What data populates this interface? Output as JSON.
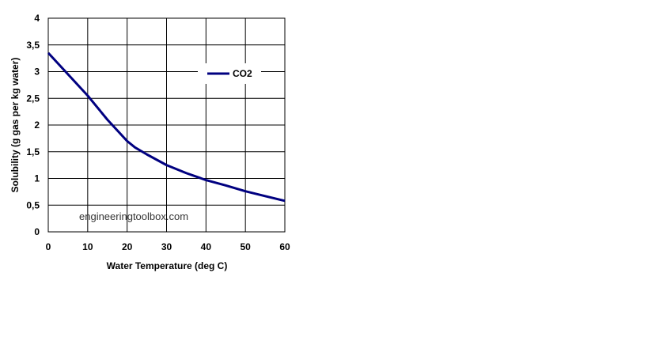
{
  "watermark": "engineeringtoolbox.com",
  "chart_data": {
    "type": "line",
    "title": "",
    "xlabel": "Water Temperature (deg C)",
    "ylabel": "Solubility (g gas per kg water)",
    "xlim": [
      0,
      60
    ],
    "ylim": [
      0,
      4
    ],
    "x_ticks": [
      "0",
      "10",
      "20",
      "30",
      "40",
      "50",
      "60"
    ],
    "y_ticks": [
      "0",
      "0,5",
      "1",
      "1,5",
      "2",
      "2,5",
      "3",
      "3,5",
      "4"
    ],
    "grid": true,
    "legend": "top-right",
    "series": [
      {
        "name": "CO2",
        "color": "#000080",
        "x": [
          0,
          5,
          10,
          15,
          20,
          22,
          25,
          30,
          35,
          40,
          45,
          50,
          55,
          60
        ],
        "y": [
          3.35,
          2.95,
          2.55,
          2.1,
          1.7,
          1.58,
          1.45,
          1.25,
          1.1,
          0.97,
          0.87,
          0.76,
          0.67,
          0.58
        ]
      }
    ]
  }
}
